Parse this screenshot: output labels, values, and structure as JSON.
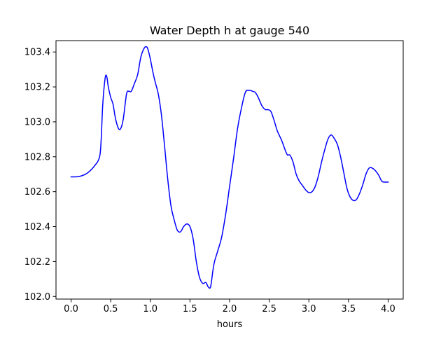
{
  "chart_data": {
    "type": "line",
    "title": "Water Depth h at gauge 540",
    "xlabel": "hours",
    "ylabel": "",
    "xlim": [
      -0.19,
      4.19
    ],
    "ylim": [
      101.985,
      103.465
    ],
    "xticks": [
      0.0,
      0.5,
      1.0,
      1.5,
      2.0,
      2.5,
      3.0,
      3.5,
      4.0
    ],
    "xtick_labels": [
      "0.0",
      "0.5",
      "1.0",
      "1.5",
      "2.0",
      "2.5",
      "3.0",
      "3.5",
      "4.0"
    ],
    "yticks": [
      102.0,
      102.2,
      102.4,
      102.6,
      102.8,
      103.0,
      103.2,
      103.4
    ],
    "ytick_labels": [
      "102.0",
      "102.2",
      "102.4",
      "102.6",
      "102.8",
      "103.0",
      "103.2",
      "103.4"
    ],
    "grid": false,
    "series": [
      {
        "color": "#0000ff",
        "x": [
          0.0,
          0.1,
          0.2,
          0.3,
          0.36,
          0.38,
          0.4,
          0.43,
          0.45,
          0.47,
          0.5,
          0.53,
          0.56,
          0.6,
          0.63,
          0.66,
          0.7,
          0.73,
          0.76,
          0.8,
          0.84,
          0.88,
          0.92,
          0.95,
          0.97,
          1.0,
          1.03,
          1.06,
          1.1,
          1.14,
          1.18,
          1.22,
          1.26,
          1.3,
          1.34,
          1.38,
          1.42,
          1.46,
          1.5,
          1.54,
          1.58,
          1.62,
          1.66,
          1.7,
          1.73,
          1.76,
          1.79,
          1.81,
          1.85,
          1.9,
          1.95,
          2.0,
          2.05,
          2.1,
          2.15,
          2.2,
          2.25,
          2.29,
          2.32,
          2.35,
          2.38,
          2.41,
          2.45,
          2.48,
          2.52,
          2.56,
          2.6,
          2.63,
          2.66,
          2.7,
          2.73,
          2.76,
          2.8,
          2.84,
          2.88,
          2.92,
          2.96,
          3.0,
          3.04,
          3.08,
          3.12,
          3.16,
          3.2,
          3.24,
          3.28,
          3.32,
          3.36,
          3.4,
          3.44,
          3.48,
          3.52,
          3.56,
          3.6,
          3.64,
          3.68,
          3.72,
          3.76,
          3.8,
          3.84,
          3.88,
          3.92,
          3.96,
          4.0
        ],
        "y": [
          102.685,
          102.687,
          102.705,
          102.75,
          102.8,
          102.9,
          103.1,
          103.25,
          103.26,
          103.2,
          103.14,
          103.1,
          103.02,
          102.96,
          102.965,
          103.02,
          103.16,
          103.175,
          103.175,
          103.22,
          103.27,
          103.37,
          103.42,
          103.43,
          103.415,
          103.36,
          103.29,
          103.23,
          103.16,
          103.04,
          102.86,
          102.67,
          102.52,
          102.44,
          102.38,
          102.37,
          102.4,
          102.415,
          102.4,
          102.33,
          102.2,
          102.11,
          102.075,
          102.08,
          102.055,
          102.055,
          102.15,
          102.2,
          102.26,
          102.34,
          102.47,
          102.63,
          102.79,
          102.96,
          103.08,
          103.17,
          103.18,
          103.175,
          103.17,
          103.15,
          103.12,
          103.09,
          103.07,
          103.07,
          103.06,
          103.01,
          102.95,
          102.92,
          102.89,
          102.84,
          102.81,
          102.81,
          102.77,
          102.7,
          102.66,
          102.635,
          102.61,
          102.595,
          102.6,
          102.63,
          102.69,
          102.77,
          102.84,
          102.9,
          102.925,
          102.905,
          102.87,
          102.8,
          102.71,
          102.62,
          102.57,
          102.55,
          102.555,
          102.59,
          102.64,
          102.7,
          102.735,
          102.735,
          102.72,
          102.695,
          102.66,
          102.655,
          102.655
        ]
      }
    ]
  }
}
